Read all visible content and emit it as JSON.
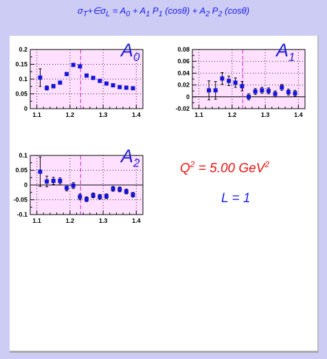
{
  "formula": {
    "sigma_t": "σ",
    "t_sub": "T",
    "plus_eps": "+∈σ",
    "l_sub": "L",
    "eq": " = A",
    "a0_sub": "0",
    "plus_a1": " + A",
    "a1_sub": "1",
    "p1": " P",
    "p1_sub": "1",
    "cos1": " (cosθ) + A",
    "a2_sub": "2",
    "p2": " P",
    "p2_sub": "2",
    "cos2": " (cosθ)"
  },
  "info": {
    "q2_label": "Q",
    "q2_sup": "2",
    "q2_value": " = 5.00 GeV",
    "q2_unit_sup": "2",
    "l_label": "L = 1"
  },
  "colors": {
    "background": "#ccccf4",
    "plot_fill": "#ffe0ff",
    "marker": "#1414dd",
    "error_bar": "#000000",
    "threshold_line": "#cc22cc",
    "formula_text": "#1a1aee",
    "q2_text": "#ee1111"
  },
  "chart_data": [
    {
      "type": "scatter",
      "panel_label": "A",
      "panel_sub": "0",
      "xlim": [
        1.08,
        1.42
      ],
      "ylim": [
        0,
        0.2
      ],
      "xticks": [
        "1.1",
        "1.2",
        "1.3",
        "1.4"
      ],
      "xtick_values": [
        1.1,
        1.2,
        1.3,
        1.4
      ],
      "yticks": [
        "0",
        "0.05",
        "0.1",
        "0.15",
        "0.2"
      ],
      "ytick_values": [
        0,
        0.05,
        0.1,
        0.15,
        0.2
      ],
      "threshold_x": 1.232,
      "zero_line": false,
      "x": [
        1.11,
        1.13,
        1.15,
        1.17,
        1.19,
        1.21,
        1.23,
        1.25,
        1.27,
        1.29,
        1.31,
        1.33,
        1.35,
        1.37,
        1.39
      ],
      "y": [
        0.105,
        0.07,
        0.076,
        0.088,
        0.117,
        0.148,
        0.143,
        0.112,
        0.104,
        0.094,
        0.085,
        0.079,
        0.073,
        0.071,
        0.069
      ],
      "yerr": [
        0.03,
        0.007,
        0.006,
        0.005,
        0.005,
        0.005,
        0.004,
        0.004,
        0.004,
        0.004,
        0.004,
        0.004,
        0.004,
        0.004,
        0.004
      ]
    },
    {
      "type": "scatter",
      "panel_label": "A",
      "panel_sub": "1",
      "xlim": [
        1.08,
        1.42
      ],
      "ylim": [
        -0.02,
        0.08
      ],
      "xticks": [
        "1.1",
        "1.2",
        "1.3",
        "1.4"
      ],
      "xtick_values": [
        1.1,
        1.2,
        1.3,
        1.4
      ],
      "yticks": [
        "-0.02",
        "0",
        "0.02",
        "0.04",
        "0.06",
        "0.08"
      ],
      "ytick_values": [
        -0.02,
        0,
        0.02,
        0.04,
        0.06,
        0.08
      ],
      "threshold_x": 1.232,
      "zero_line": true,
      "x": [
        1.13,
        1.15,
        1.17,
        1.19,
        1.21,
        1.23,
        1.25,
        1.27,
        1.29,
        1.31,
        1.33,
        1.35,
        1.37,
        1.39
      ],
      "y": [
        0.011,
        0.011,
        0.031,
        0.027,
        0.024,
        0.018,
        0.0,
        0.009,
        0.011,
        0.01,
        0.005,
        0.016,
        0.008,
        0.006
      ],
      "yerr": [
        0.016,
        0.015,
        0.01,
        0.008,
        0.008,
        0.008,
        0.005,
        0.005,
        0.005,
        0.005,
        0.005,
        0.005,
        0.005,
        0.005
      ]
    },
    {
      "type": "scatter",
      "panel_label": "A",
      "panel_sub": "2",
      "xlim": [
        1.08,
        1.42
      ],
      "ylim": [
        -0.1,
        0.1
      ],
      "xticks": [
        "1.1",
        "1.2",
        "1.3",
        "1.4"
      ],
      "xtick_values": [
        1.1,
        1.2,
        1.3,
        1.4
      ],
      "yticks": [
        "-0.1",
        "-0.05",
        "0",
        "0.05",
        "0.1"
      ],
      "ytick_values": [
        -0.1,
        -0.05,
        0,
        0.05,
        0.1
      ],
      "threshold_x": 1.232,
      "zero_line": true,
      "x": [
        1.11,
        1.13,
        1.15,
        1.17,
        1.19,
        1.21,
        1.23,
        1.25,
        1.27,
        1.29,
        1.31,
        1.33,
        1.35,
        1.37,
        1.39
      ],
      "y": [
        0.045,
        0.012,
        0.014,
        0.014,
        -0.01,
        -0.002,
        -0.04,
        -0.048,
        -0.035,
        -0.04,
        -0.038,
        -0.013,
        -0.015,
        -0.022,
        -0.033
      ],
      "yerr": [
        0.05,
        0.018,
        0.012,
        0.01,
        0.01,
        0.01,
        0.01,
        0.008,
        0.008,
        0.008,
        0.008,
        0.008,
        0.008,
        0.008,
        0.008
      ]
    }
  ]
}
